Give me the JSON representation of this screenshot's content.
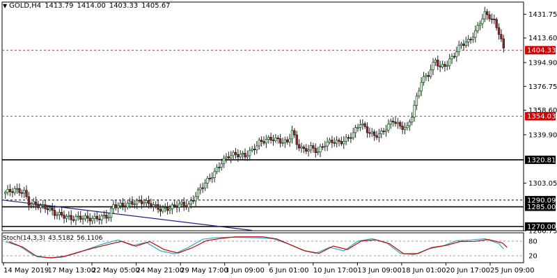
{
  "header": {
    "symbol": "GOLD,H4",
    "open": "1413.79",
    "high": "1414.00",
    "low": "1403.33",
    "close": "1405.67"
  },
  "stochastic": {
    "label": "Stoch(14,3,3)",
    "main_value": "43.5182",
    "signal_value": "56.1106",
    "levels": [
      "80",
      "20"
    ],
    "range": [
      0,
      100
    ]
  },
  "colors": {
    "bull_candle": "#1b5e20",
    "bear_candle": "#b71c1c",
    "support_resistance": "#000000",
    "dashed_level": "#d32f2f",
    "trendline": "#1a237e",
    "stoch_main": "#20b2c8",
    "stoch_signal": "#cc0000",
    "price_tag": "#d50000"
  },
  "chart_data": {
    "type": "candlestick",
    "ylim": [
      1266.75,
      1441.0
    ],
    "y_ticks": [
      "1431.75",
      "1413.60",
      "1394.90",
      "1376.75",
      "1358.60",
      "1339.90",
      "1303.05",
      "1266.75"
    ],
    "x_ticks": [
      "14 May 2019",
      "17 May 13:00",
      "22 May 05:00",
      "24 May 21:00",
      "29 May 17:00",
      "3 Jun 09:00",
      "6 Jun 01:00",
      "10 Jun 17:00",
      "13 Jun 09:00",
      "18 Jun 01:00",
      "20 Jun 17:00",
      "25 Jun 09:00"
    ],
    "horizontal_levels": [
      {
        "value": 1404.33,
        "label": "1404.33",
        "style": "dashed-red",
        "tag": "red"
      },
      {
        "value": 1354.03,
        "label": "1354.03",
        "style": "dashed-red",
        "tag": "red"
      },
      {
        "value": 1320.81,
        "label": "1320.81",
        "style": "solid-black",
        "tag": "black"
      },
      {
        "value": 1290.09,
        "label": "1290.09",
        "style": "dashed-black",
        "tag": "black"
      },
      {
        "value": 1285.0,
        "label": "1285.00",
        "style": "solid-black",
        "tag": "black"
      },
      {
        "value": 1270.0,
        "label": "1270.00",
        "style": "solid-black",
        "tag": "black"
      }
    ],
    "trendline": {
      "from": {
        "bar": 0,
        "price": 1290.09
      },
      "to": {
        "bar": 105,
        "price": 1267.0
      }
    },
    "price_path": [
      [
        0,
        1296
      ],
      [
        4,
        1298
      ],
      [
        8,
        1296
      ],
      [
        10,
        1288
      ],
      [
        14,
        1286
      ],
      [
        18,
        1284
      ],
      [
        21,
        1280
      ],
      [
        25,
        1278
      ],
      [
        28,
        1276
      ],
      [
        32,
        1277
      ],
      [
        35,
        1276
      ],
      [
        38,
        1276
      ],
      [
        41,
        1277
      ],
      [
        44,
        1278
      ],
      [
        46,
        1286
      ],
      [
        50,
        1286
      ],
      [
        54,
        1288
      ],
      [
        58,
        1289
      ],
      [
        62,
        1287
      ],
      [
        66,
        1283
      ],
      [
        70,
        1284
      ],
      [
        74,
        1287
      ],
      [
        78,
        1286
      ],
      [
        80,
        1291
      ],
      [
        83,
        1299
      ],
      [
        86,
        1305
      ],
      [
        89,
        1311
      ],
      [
        92,
        1319
      ],
      [
        95,
        1324
      ],
      [
        98,
        1325
      ],
      [
        102,
        1324
      ],
      [
        105,
        1328
      ],
      [
        108,
        1334
      ],
      [
        111,
        1336
      ],
      [
        114,
        1337
      ],
      [
        117,
        1335
      ],
      [
        120,
        1334
      ],
      [
        122,
        1343
      ],
      [
        124,
        1333
      ],
      [
        127,
        1328
      ],
      [
        130,
        1330
      ],
      [
        133,
        1327
      ],
      [
        136,
        1333
      ],
      [
        139,
        1335
      ],
      [
        142,
        1334
      ],
      [
        145,
        1336
      ],
      [
        148,
        1341
      ],
      [
        151,
        1349
      ],
      [
        154,
        1343
      ],
      [
        157,
        1339
      ],
      [
        160,
        1341
      ],
      [
        163,
        1347
      ],
      [
        165,
        1351
      ],
      [
        168,
        1346
      ],
      [
        171,
        1345
      ],
      [
        173,
        1355
      ],
      [
        175,
        1368
      ],
      [
        177,
        1381
      ],
      [
        180,
        1386
      ],
      [
        183,
        1397
      ],
      [
        185,
        1391
      ],
      [
        188,
        1394
      ],
      [
        191,
        1401
      ],
      [
        194,
        1409
      ],
      [
        197,
        1411
      ],
      [
        200,
        1418
      ],
      [
        202,
        1426
      ],
      [
        204,
        1432
      ],
      [
        206,
        1430
      ],
      [
        208,
        1426
      ],
      [
        210,
        1418
      ],
      [
        212,
        1406
      ]
    ],
    "stochastic_path": [
      [
        0,
        78
      ],
      [
        6,
        60
      ],
      [
        12,
        22
      ],
      [
        18,
        12
      ],
      [
        24,
        14
      ],
      [
        30,
        30
      ],
      [
        36,
        50
      ],
      [
        42,
        70
      ],
      [
        48,
        85
      ],
      [
        54,
        62
      ],
      [
        60,
        75
      ],
      [
        66,
        40
      ],
      [
        72,
        28
      ],
      [
        78,
        55
      ],
      [
        84,
        88
      ],
      [
        90,
        95
      ],
      [
        96,
        96
      ],
      [
        102,
        95
      ],
      [
        108,
        94
      ],
      [
        114,
        90
      ],
      [
        120,
        70
      ],
      [
        126,
        45
      ],
      [
        132,
        30
      ],
      [
        138,
        55
      ],
      [
        144,
        40
      ],
      [
        150,
        80
      ],
      [
        156,
        90
      ],
      [
        162,
        75
      ],
      [
        168,
        30
      ],
      [
        174,
        25
      ],
      [
        180,
        48
      ],
      [
        186,
        60
      ],
      [
        192,
        82
      ],
      [
        198,
        85
      ],
      [
        204,
        90
      ],
      [
        210,
        70
      ],
      [
        212,
        48
      ]
    ]
  }
}
